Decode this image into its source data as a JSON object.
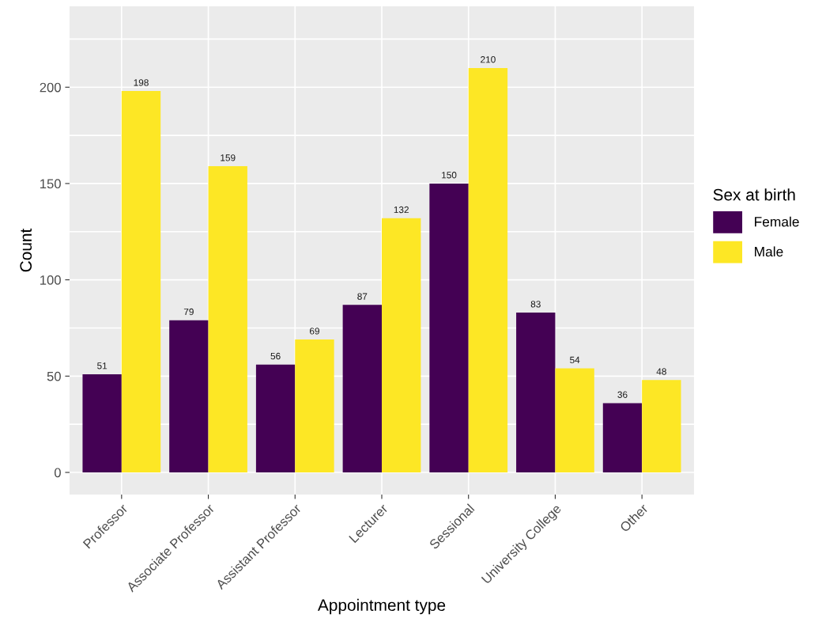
{
  "chart_data": {
    "type": "bar",
    "xlabel": "Appointment type",
    "ylabel": "Count",
    "legend_title": "Sex at birth",
    "categories": [
      "Professor",
      "Associate Professor",
      "Assistant Professor",
      "Lecturer",
      "Sessional",
      "University College",
      "Other"
    ],
    "series": [
      {
        "name": "Female",
        "color": "#440154",
        "values": [
          51,
          79,
          56,
          87,
          150,
          83,
          36
        ]
      },
      {
        "name": "Male",
        "color": "#fde725",
        "values": [
          198,
          159,
          69,
          132,
          210,
          54,
          48
        ]
      }
    ],
    "ylim": [
      -11.5,
      242
    ],
    "yticks": [
      0,
      {
        "value": 25,
        "label": null
      },
      50,
      {
        "value": 75,
        "label": null
      },
      100,
      {
        "value": 125,
        "label": null
      },
      150,
      {
        "value": 175,
        "label": null
      },
      200,
      {
        "value": 225,
        "label": null
      }
    ],
    "data_labels": true,
    "grid": true,
    "legend": "right"
  }
}
